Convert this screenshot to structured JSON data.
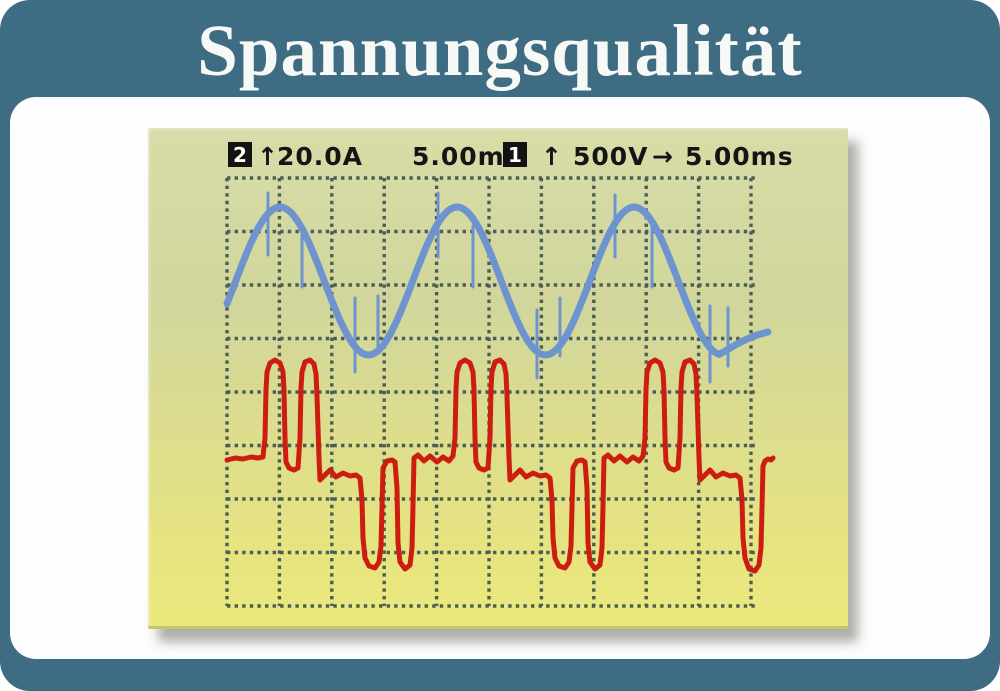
{
  "title": "Spannungsqualität",
  "colors": {
    "frame_teal": "#3e6c82",
    "panel_white": "#fdfdfd",
    "screen_top": "#d8dca7",
    "screen_bottom": "#ece97c",
    "grid_dots": "#4b5e55",
    "voltage_blue": "#6e94d0",
    "current_red": "#cd1d10",
    "badge_black": "#131313"
  },
  "scope": {
    "header": {
      "ch2": {
        "badge": "2",
        "arrow": "↑",
        "scale": "20.0A",
        "time": "5.00ms"
      },
      "ch1": {
        "badge": "1",
        "arrow": "↑",
        "scale": "500V",
        "arrow2": "→",
        "time": "5.00ms"
      }
    }
  },
  "chart_data": {
    "type": "line",
    "title": "Spannungsqualität",
    "instrument": "oscilloscope screen",
    "grid": {
      "cols": 10,
      "rows": 8,
      "style": "dotted",
      "axis_labels": "none"
    },
    "series": [
      {
        "channel": "1",
        "readout": "1 ↑ 500V → 5.00ms",
        "signal": "voltage",
        "shape": "sine wave, 3 cycles visible, with short vertical switching spikes near each peak and trough",
        "color": "#6e94d0"
      },
      {
        "channel": "2",
        "readout": "2 ↑ 20.0A 5.00ms",
        "signal": "current",
        "shape": "nonlinear-load current: pairs of narrow positive pulses, ringing plateau, pairs of deep negative pulses, repeating 3 times",
        "color": "#cd1d10"
      }
    ],
    "pixel_model": {
      "grid": {
        "x0": 79,
        "y0": 50,
        "dx": 52.4,
        "dy": 53.5,
        "cols": 10,
        "rows": 8,
        "h_extend": 7,
        "dot": 3.4,
        "gap": 4.2,
        "color": "#4b5e55"
      },
      "sine": {
        "x_start": 79,
        "x_end": 571,
        "peak_x": 132,
        "period": 177,
        "center_y": 153,
        "amplitude": 74,
        "width": 7,
        "color": "#6e94d0",
        "tail": [
          [
            579,
            222
          ],
          [
            589,
            216
          ],
          [
            599,
            211
          ],
          [
            609,
            207
          ],
          [
            620,
            204
          ]
        ]
      },
      "spike_width": 3,
      "spikes": [
        [
          120,
          65,
          127
        ],
        [
          154,
          98,
          159
        ],
        [
          207,
          170,
          244
        ],
        [
          230,
          168,
          224
        ],
        [
          290,
          65,
          129
        ],
        [
          325,
          98,
          159
        ],
        [
          389,
          182,
          250
        ],
        [
          412,
          170,
          228
        ],
        [
          467,
          67,
          129
        ],
        [
          504,
          98,
          159
        ],
        [
          562,
          178,
          254
        ],
        [
          580,
          180,
          238
        ]
      ],
      "current": {
        "color": "#cd1d10",
        "width": 5,
        "lead_in": [
          [
            79,
            332
          ],
          [
            87,
            330
          ],
          [
            95,
            331
          ],
          [
            103,
            329
          ],
          [
            110,
            330
          ],
          [
            115,
            329
          ]
        ],
        "template": [
          [
            0,
            310
          ],
          [
            1,
            262
          ],
          [
            2,
            244
          ],
          [
            5,
            235
          ],
          [
            10,
            232
          ],
          [
            15,
            235
          ],
          [
            18,
            244
          ],
          [
            19,
            262
          ],
          [
            20,
            310
          ],
          [
            21,
            334
          ],
          [
            24,
            340
          ],
          [
            29,
            342
          ],
          [
            33,
            340
          ],
          [
            35,
            310
          ],
          [
            36,
            260
          ],
          [
            37,
            244
          ],
          [
            40,
            234
          ],
          [
            45,
            232
          ],
          [
            49,
            236
          ],
          [
            51,
            246
          ],
          [
            52,
            268
          ],
          [
            54,
            330
          ],
          [
            55,
            352
          ],
          [
            59,
            348
          ],
          [
            65,
            342
          ],
          [
            71,
            349
          ],
          [
            78,
            345
          ],
          [
            85,
            348
          ],
          [
            91,
            347
          ],
          [
            95,
            350
          ],
          [
            97,
            372
          ],
          [
            98,
            410
          ],
          [
            100,
            430
          ],
          [
            104,
            438
          ],
          [
            110,
            440
          ],
          [
            114,
            434
          ],
          [
            116,
            418
          ],
          [
            117,
            380
          ],
          [
            118,
            340
          ],
          [
            122,
            333
          ],
          [
            127,
            332
          ],
          [
            130,
            334
          ],
          [
            132,
            360
          ],
          [
            133,
            415
          ],
          [
            135,
            434
          ],
          [
            140,
            441
          ],
          [
            145,
            437
          ],
          [
            147,
            420
          ],
          [
            148,
            378
          ],
          [
            149,
            330
          ],
          [
            153,
            327
          ],
          [
            159,
            333
          ],
          [
            165,
            328
          ],
          [
            172,
            334
          ],
          [
            178,
            329
          ],
          [
            184,
            333
          ],
          [
            188,
            328
          ]
        ],
        "groups": [
          {
            "x0": 117
          },
          {
            "x0": 307
          },
          {
            "x0": 497,
            "upto": 95
          }
        ],
        "ending": [
          [
            594,
            372
          ],
          [
            595,
            410
          ],
          [
            597,
            430
          ],
          [
            601,
            441
          ],
          [
            607,
            443
          ],
          [
            611,
            437
          ],
          [
            613,
            420
          ],
          [
            614,
            380
          ],
          [
            615,
            338
          ],
          [
            617,
            333
          ],
          [
            620,
            331
          ],
          [
            623,
            332
          ],
          [
            625,
            330
          ]
        ]
      }
    }
  }
}
